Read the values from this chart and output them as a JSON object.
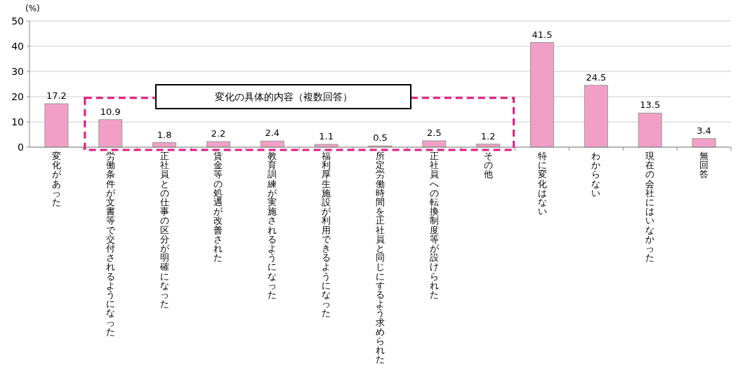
{
  "chart_data": {
    "type": "bar",
    "ylabel": "(%)",
    "categories": [
      "変化があった",
      "労働条件が文書等で交付されるようになった",
      "正社員との仕事の区分が明確になった",
      "賃金等の処遇が改善された",
      "教育訓練が実施されるようになった",
      "福利厚生施設が利用できるようになった",
      "所定労働時間を正社員と同じにするよう求められた",
      "正社員への転換制度等が設けられた",
      "その他",
      "特に変化はない",
      "わからない",
      "現在の会社にはいなかった",
      "無回答"
    ],
    "values": [
      17.2,
      10.9,
      1.8,
      2.2,
      2.4,
      1.1,
      0.5,
      2.5,
      1.2,
      41.5,
      24.5,
      13.5,
      3.4
    ],
    "color": "#f29fc5",
    "ylim": [
      0,
      50
    ],
    "yticks": [
      0,
      10,
      20,
      30,
      40,
      50
    ],
    "grid": "y",
    "data_labels": true,
    "annotations": [
      "変化の具体的内容（複数回答）"
    ]
  }
}
